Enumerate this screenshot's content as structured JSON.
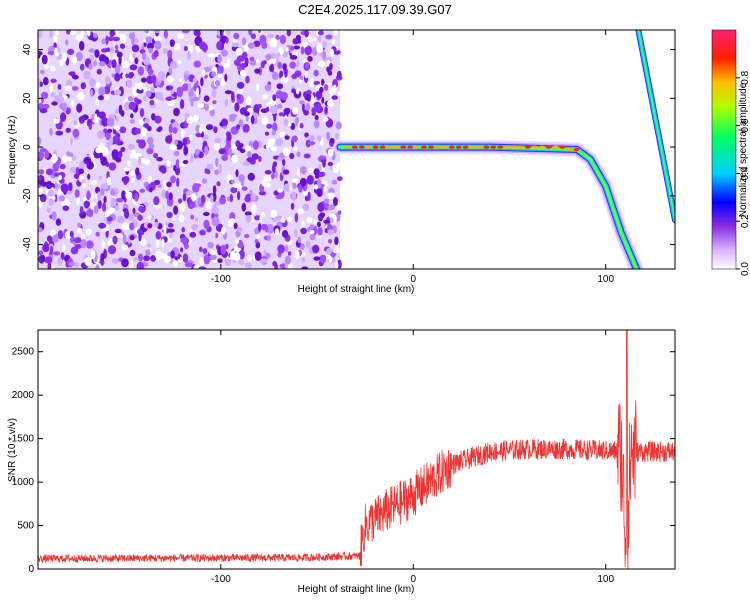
{
  "title": "C2E4.2025.117.09.39.G07",
  "chart_data": [
    {
      "type": "heatmap",
      "name": "spectrogram",
      "xlabel": "Height of straight line (km)",
      "ylabel": "Frequency (Hz)",
      "xlim": [
        -195,
        136
      ],
      "ylim": [
        -50,
        48
      ],
      "xticks": [
        -100,
        0,
        100
      ],
      "yticks": [
        -40,
        -20,
        0,
        20,
        40
      ],
      "noise_region_x": [
        -195,
        -38
      ],
      "signal_track": [
        {
          "x": -38,
          "y": 0
        },
        {
          "x": 0,
          "y": 0
        },
        {
          "x": 40,
          "y": 0
        },
        {
          "x": 85,
          "y": -1
        },
        {
          "x": 92,
          "y": -5
        },
        {
          "x": 100,
          "y": -16
        },
        {
          "x": 108,
          "y": -35
        },
        {
          "x": 116,
          "y": -50
        }
      ],
      "second_track": [
        {
          "x": 117,
          "y": 48
        },
        {
          "x": 136,
          "y": -30
        }
      ],
      "colorbar": {
        "label": "Normalized spectral amplitude",
        "range": [
          0,
          1
        ],
        "ticks": [
          0.0,
          0.2,
          0.4,
          0.6,
          0.8
        ]
      }
    },
    {
      "type": "line",
      "name": "snr",
      "xlabel": "Height of straight line (km)",
      "ylabel": "SNR (10 * v/v)",
      "xlim": [
        -195,
        136
      ],
      "ylim": [
        0,
        2750
      ],
      "xticks": [
        -100,
        0,
        100
      ],
      "yticks": [
        0,
        500,
        1000,
        1500,
        2000,
        2500
      ],
      "color": "#ee3333",
      "envelope": [
        {
          "x": -195,
          "y": 120
        },
        {
          "x": -60,
          "y": 130
        },
        {
          "x": -28,
          "y": 150
        },
        {
          "x": -25,
          "y": 500
        },
        {
          "x": -15,
          "y": 650
        },
        {
          "x": 0,
          "y": 850
        },
        {
          "x": 20,
          "y": 1200
        },
        {
          "x": 40,
          "y": 1350
        },
        {
          "x": 60,
          "y": 1380
        },
        {
          "x": 80,
          "y": 1380
        },
        {
          "x": 100,
          "y": 1360
        },
        {
          "x": 108,
          "y": 1350
        },
        {
          "x": 111,
          "y": 150
        },
        {
          "x": 113,
          "y": 1350
        },
        {
          "x": 136,
          "y": 1350
        }
      ],
      "spike": {
        "x": 111,
        "y": 2750
      }
    }
  ]
}
